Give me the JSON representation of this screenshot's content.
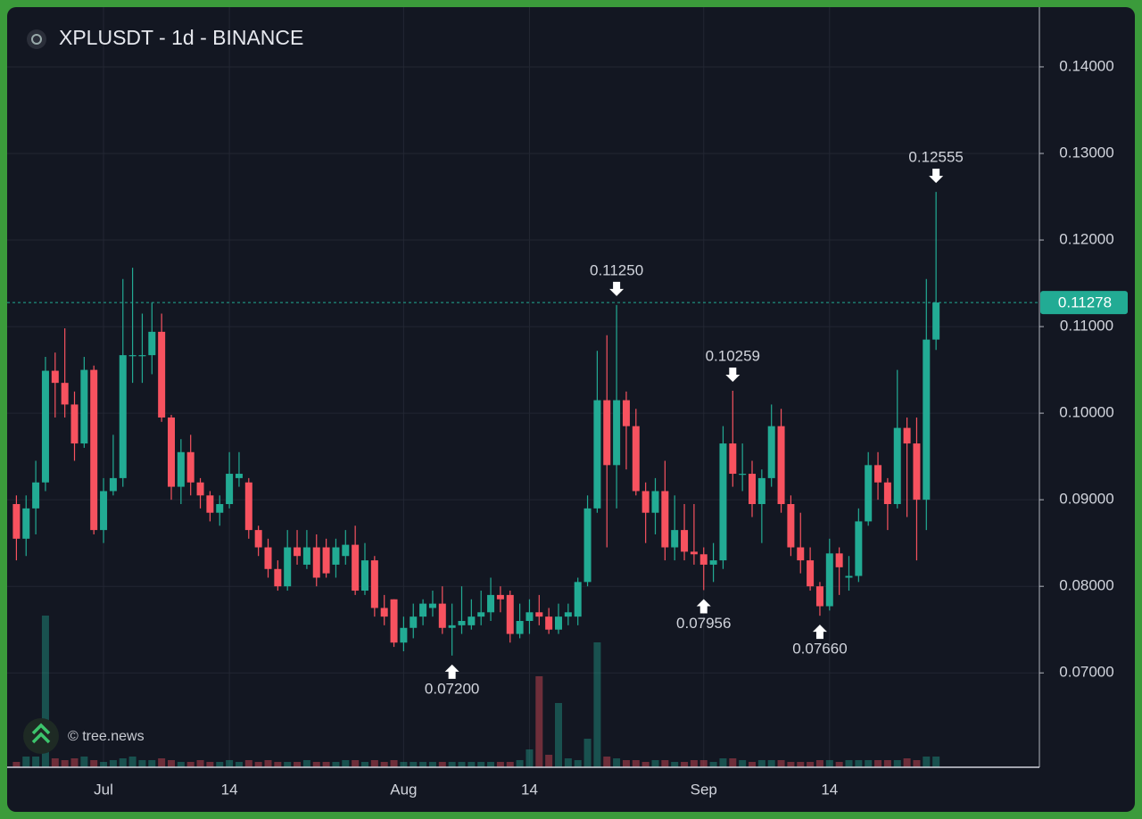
{
  "chart_data": {
    "type": "candlestick",
    "title": "XPLUSDT - 1d - BINANCE",
    "watermark": "© tree.news",
    "up_color": "#22ab94",
    "down_color": "#f7525f",
    "grid": true,
    "categories": [
      null,
      null,
      null,
      null,
      null,
      null,
      null,
      null,
      null,
      "Jul",
      null,
      null,
      null,
      null,
      null,
      null,
      null,
      null,
      null,
      null,
      null,
      null,
      "14",
      null,
      null,
      null,
      null,
      null,
      null,
      null,
      null,
      null,
      null,
      null,
      null,
      null,
      null,
      null,
      null,
      null,
      "Aug",
      null,
      null,
      null,
      null,
      null,
      null,
      null,
      null,
      null,
      null,
      null,
      null,
      "14",
      null,
      null,
      null,
      null,
      null,
      null,
      null,
      null,
      null,
      null,
      null,
      null,
      null,
      null,
      null,
      null,
      null,
      "Sep",
      null,
      null,
      null,
      null,
      null,
      null,
      null,
      null,
      null,
      null,
      null,
      null,
      "14",
      null,
      null,
      null,
      null,
      null,
      null,
      null,
      null,
      null,
      null,
      null
    ],
    "open": [
      0.0895,
      0.0855,
      0.089,
      0.092,
      0.1049,
      0.1035,
      0.101,
      0.0965,
      0.105,
      0.0865,
      0.091,
      0.0925,
      0.1067,
      0.1067,
      0.1067,
      0.1094,
      0.0995,
      0.0915,
      0.0955,
      0.092,
      0.0905,
      0.0885,
      0.0895,
      0.0925,
      0.092,
      0.0865,
      0.0845,
      0.082,
      0.08,
      0.0845,
      0.0825,
      0.0845,
      0.0845,
      0.0825,
      0.0835,
      0.0848,
      0.0795,
      0.083,
      0.0775,
      0.0785,
      0.0735,
      0.0752,
      0.0765,
      0.0775,
      0.078,
      0.0752,
      0.0755,
      0.0755,
      0.0765,
      0.077,
      0.079,
      0.079,
      0.0745,
      0.076,
      0.077,
      0.0765,
      0.075,
      0.0765,
      0.0765,
      0.0805,
      0.089,
      0.1015,
      0.094,
      0.1015,
      0.0985,
      0.091,
      0.0885,
      0.091,
      0.0845,
      0.0865,
      0.084,
      0.0837,
      0.0825,
      0.083,
      0.0965,
      0.093,
      0.093,
      0.0895,
      0.0925,
      0.0985,
      0.0895,
      0.0845,
      0.083,
      0.08,
      0.0777,
      0.0838,
      0.081,
      0.0812,
      0.0875,
      0.094,
      0.092,
      0.0895,
      0.0983,
      0.0965,
      0.09,
      0.1085
    ],
    "high": [
      0.0905,
      0.0905,
      0.0945,
      0.1065,
      0.107,
      0.1098,
      0.1025,
      0.1065,
      0.1055,
      0.0925,
      0.0975,
      0.1155,
      0.1168,
      0.1115,
      0.1128,
      0.1115,
      0.0998,
      0.097,
      0.0975,
      0.0925,
      0.091,
      0.0905,
      0.0955,
      0.0955,
      0.0925,
      0.087,
      0.0855,
      0.083,
      0.0865,
      0.0865,
      0.0865,
      0.086,
      0.0855,
      0.0855,
      0.0865,
      0.087,
      0.085,
      0.0835,
      0.079,
      0.0785,
      0.0765,
      0.078,
      0.0785,
      0.0795,
      0.08,
      0.078,
      0.08,
      0.0785,
      0.0795,
      0.081,
      0.08,
      0.0795,
      0.078,
      0.0785,
      0.079,
      0.0775,
      0.078,
      0.078,
      0.081,
      0.0905,
      0.1072,
      0.109,
      0.1125,
      0.1025,
      0.1005,
      0.092,
      0.0925,
      0.0945,
      0.0905,
      0.0895,
      0.0895,
      0.0845,
      0.085,
      0.0985,
      0.10259,
      0.0965,
      0.0945,
      0.0935,
      0.101,
      0.1005,
      0.0905,
      0.0885,
      0.0845,
      0.0805,
      0.0855,
      0.0845,
      0.0835,
      0.089,
      0.0955,
      0.0955,
      0.0925,
      0.105,
      0.0995,
      0.0995,
      0.1155,
      0.12555
    ],
    "low": [
      0.083,
      0.0835,
      0.086,
      0.091,
      0.0995,
      0.0995,
      0.0945,
      0.096,
      0.086,
      0.085,
      0.0905,
      0.0915,
      0.1035,
      0.1035,
      0.1045,
      0.099,
      0.09,
      0.0895,
      0.0905,
      0.089,
      0.0875,
      0.087,
      0.089,
      0.0915,
      0.0855,
      0.0835,
      0.081,
      0.0795,
      0.0795,
      0.0825,
      0.082,
      0.08,
      0.081,
      0.081,
      0.0825,
      0.079,
      0.079,
      0.0765,
      0.0755,
      0.073,
      0.0725,
      0.074,
      0.0755,
      0.0765,
      0.0745,
      0.072,
      0.0745,
      0.075,
      0.0755,
      0.076,
      0.077,
      0.0735,
      0.074,
      0.0745,
      0.0755,
      0.0745,
      0.0745,
      0.0755,
      0.0755,
      0.08,
      0.0885,
      0.0845,
      0.089,
      0.0935,
      0.0905,
      0.085,
      0.086,
      0.083,
      0.083,
      0.083,
      0.0825,
      0.07956,
      0.0805,
      0.082,
      0.0915,
      0.091,
      0.088,
      0.085,
      0.0915,
      0.0885,
      0.0835,
      0.0815,
      0.0795,
      0.0766,
      0.0772,
      0.079,
      0.0795,
      0.0805,
      0.087,
      0.09,
      0.0865,
      0.089,
      0.088,
      0.083,
      0.0865,
      0.1073
    ],
    "close": [
      0.0855,
      0.089,
      0.092,
      0.1049,
      0.1035,
      0.101,
      0.0965,
      0.105,
      0.0865,
      0.091,
      0.0925,
      0.1067,
      0.1067,
      0.1067,
      0.1094,
      0.0995,
      0.0915,
      0.0955,
      0.092,
      0.0905,
      0.0885,
      0.0895,
      0.093,
      0.093,
      0.0865,
      0.0845,
      0.082,
      0.08,
      0.0845,
      0.0835,
      0.0845,
      0.081,
      0.0815,
      0.0845,
      0.0848,
      0.0795,
      0.083,
      0.0775,
      0.0765,
      0.0735,
      0.0752,
      0.0765,
      0.078,
      0.078,
      0.0752,
      0.0755,
      0.076,
      0.0765,
      0.077,
      0.079,
      0.0785,
      0.0745,
      0.076,
      0.077,
      0.0765,
      0.075,
      0.0765,
      0.077,
      0.0805,
      0.089,
      0.1015,
      0.094,
      0.1015,
      0.0985,
      0.091,
      0.0885,
      0.091,
      0.0845,
      0.0865,
      0.084,
      0.0837,
      0.0825,
      0.083,
      0.0965,
      0.093,
      0.093,
      0.0895,
      0.0925,
      0.0985,
      0.0895,
      0.0845,
      0.083,
      0.08,
      0.0777,
      0.0838,
      0.0822,
      0.0812,
      0.0875,
      0.094,
      0.092,
      0.0895,
      0.0983,
      0.0965,
      0.09,
      0.1085,
      0.11278
    ],
    "volume": [
      3,
      6,
      6,
      85,
      5,
      4,
      5,
      6,
      4,
      3,
      4,
      5,
      6,
      4,
      4,
      5,
      4,
      3,
      3,
      4,
      3,
      3,
      4,
      3,
      4,
      3,
      4,
      3,
      3,
      3,
      4,
      3,
      3,
      3,
      4,
      4,
      3,
      4,
      3,
      4,
      3,
      3,
      3,
      3,
      3,
      3,
      3,
      3,
      3,
      3,
      3,
      3,
      4,
      10,
      51,
      7,
      36,
      5,
      4,
      16,
      70,
      6,
      5,
      4,
      4,
      3,
      4,
      4,
      3,
      3,
      4,
      4,
      3,
      5,
      5,
      4,
      3,
      4,
      4,
      4,
      3,
      3,
      3,
      4,
      4,
      3,
      4,
      4,
      4,
      4,
      4,
      4,
      5,
      4,
      6,
      6
    ],
    "volume_lim": [
      0,
      100
    ],
    "ylim": [
      0.0591,
      0.1469
    ],
    "yticks": [
      {
        "value": 0.07,
        "label": "0.07000"
      },
      {
        "value": 0.08,
        "label": "0.08000"
      },
      {
        "value": 0.09,
        "label": "0.09000"
      },
      {
        "value": 0.1,
        "label": "0.10000"
      },
      {
        "value": 0.11,
        "label": "0.11000"
      },
      {
        "value": 0.12,
        "label": "0.12000"
      },
      {
        "value": 0.13,
        "label": "0.13000"
      },
      {
        "value": 0.14,
        "label": "0.14000"
      }
    ],
    "last_price": {
      "value": 0.11278,
      "label": "0.11278"
    },
    "annotations": [
      {
        "kind": "high",
        "value": 0.12555,
        "label": "0.12555"
      },
      {
        "kind": "high",
        "value": 0.1125,
        "label": "0.11250"
      },
      {
        "kind": "high",
        "value": 0.10259,
        "label": "0.10259"
      },
      {
        "kind": "low",
        "value": 0.072,
        "label": "0.07200"
      },
      {
        "kind": "low",
        "value": 0.07956,
        "label": "0.07956"
      },
      {
        "kind": "low",
        "value": 0.0766,
        "label": "0.07660"
      }
    ]
  }
}
